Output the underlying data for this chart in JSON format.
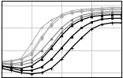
{
  "x_points": [
    0,
    1,
    2,
    3,
    4,
    5,
    6,
    7,
    8,
    9,
    10,
    11,
    12
  ],
  "series": [
    {
      "color": "#aaaaaa",
      "marker": "^",
      "linewidth": 0.7,
      "markersize": 2.0,
      "y": [
        5.5,
        5.5,
        5.6,
        5.8,
        6.5,
        7.2,
        7.6,
        7.75,
        7.82,
        7.85,
        7.88,
        7.9,
        7.9
      ]
    },
    {
      "color": "#aaaaaa",
      "marker": "D",
      "linewidth": 0.7,
      "markersize": 2.0,
      "y": [
        5.5,
        5.55,
        5.6,
        5.9,
        6.6,
        7.1,
        7.5,
        7.68,
        7.76,
        7.8,
        7.83,
        7.85,
        7.85
      ]
    },
    {
      "color": "#aaaaaa",
      "marker": "+",
      "linewidth": 0.7,
      "markersize": 2.5,
      "y": [
        5.45,
        5.5,
        5.65,
        6.3,
        7.0,
        7.35,
        7.55,
        7.65,
        7.72,
        7.76,
        7.79,
        7.8,
        7.8
      ]
    },
    {
      "color": "#777777",
      "marker": "^",
      "linewidth": 0.7,
      "markersize": 2.0,
      "y": [
        5.4,
        5.4,
        5.45,
        5.6,
        6.0,
        6.5,
        7.0,
        7.35,
        7.55,
        7.65,
        7.7,
        7.72,
        7.72
      ]
    },
    {
      "color": "#777777",
      "marker": "s",
      "linewidth": 0.7,
      "markersize": 2.0,
      "y": [
        5.4,
        5.35,
        5.35,
        5.45,
        5.7,
        6.2,
        6.8,
        7.2,
        7.45,
        7.58,
        7.63,
        7.65,
        7.65
      ]
    },
    {
      "color": "#000000",
      "marker": "^",
      "linewidth": 0.9,
      "markersize": 2.0,
      "y": [
        5.3,
        5.25,
        5.2,
        5.3,
        5.6,
        6.1,
        6.65,
        7.1,
        7.35,
        7.5,
        7.55,
        7.58,
        7.58
      ]
    },
    {
      "color": "#000000",
      "marker": "s",
      "linewidth": 0.9,
      "markersize": 2.0,
      "y": [
        5.3,
        5.2,
        5.1,
        5.1,
        5.25,
        5.6,
        6.1,
        6.6,
        7.0,
        7.25,
        7.38,
        7.42,
        7.42
      ]
    },
    {
      "color": "#000000",
      "marker": "+",
      "linewidth": 0.9,
      "markersize": 2.5,
      "y": [
        5.2,
        5.1,
        5.0,
        4.95,
        5.0,
        5.2,
        5.6,
        6.1,
        6.55,
        6.95,
        7.15,
        7.22,
        7.22
      ]
    }
  ],
  "xlim": [
    0,
    12
  ],
  "ylim": [
    4.8,
    8.2
  ],
  "xtick_positions": [
    0,
    3,
    6,
    9,
    12
  ],
  "ytick_positions": [
    5.0,
    6.0,
    7.0,
    8.0
  ],
  "grid_color": "#bbbbbb",
  "bg_color": "#ffffff",
  "spine_color": "#000000",
  "figsize": [
    1.56,
    0.99
  ],
  "dpi": 100
}
